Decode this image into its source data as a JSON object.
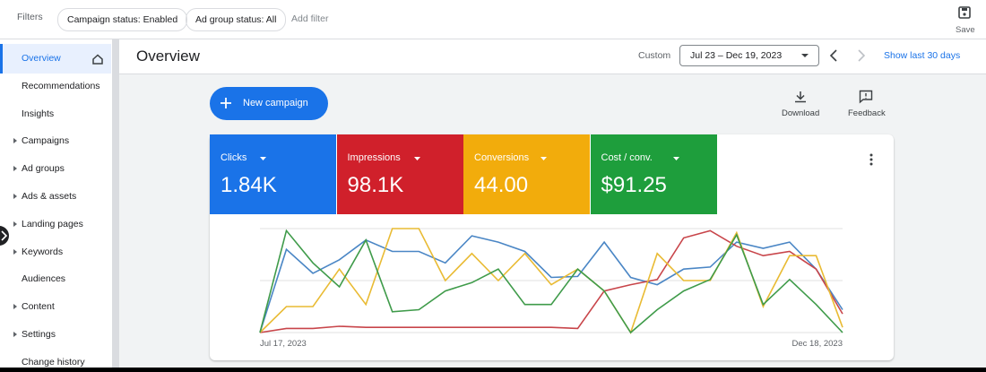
{
  "filters": {
    "label": "Filters",
    "chips": [
      "Campaign status: Enabled",
      "Ad group status: All"
    ],
    "add": "Add filter"
  },
  "save": "Save",
  "nav": [
    {
      "label": "Overview",
      "selected": true,
      "expandable": false
    },
    {
      "label": "Recommendations",
      "expandable": false
    },
    {
      "label": "Insights",
      "expandable": false
    },
    {
      "label": "Campaigns",
      "expandable": true
    },
    {
      "label": "Ad groups",
      "expandable": true
    },
    {
      "label": "Ads & assets",
      "expandable": true
    },
    {
      "label": "Landing pages",
      "expandable": true
    },
    {
      "label": "Keywords",
      "expandable": true
    },
    {
      "label": "Audiences",
      "expandable": false
    },
    {
      "label": "Content",
      "expandable": true
    },
    {
      "label": "Settings",
      "expandable": true
    },
    {
      "label": "Change history",
      "expandable": false
    }
  ],
  "header": {
    "title": "Overview",
    "range_label": "Custom",
    "range": "Jul 23 – Dec 19, 2023",
    "show_last": "Show last 30 days"
  },
  "actions": {
    "new_campaign": "New campaign",
    "download": "Download",
    "feedback": "Feedback"
  },
  "metrics": [
    {
      "name": "Clicks",
      "value": "1.84K",
      "color": "#1a73e8"
    },
    {
      "name": "Impressions",
      "value": "98.1K",
      "color": "#d0202b"
    },
    {
      "name": "Conversions",
      "value": "44.00",
      "color": "#f2ac0c"
    },
    {
      "name": "Cost / conv.",
      "value": "$91.25",
      "color": "#1e9e3c"
    }
  ],
  "chart_data": {
    "type": "line",
    "categories": [
      "Jul 17, 2023",
      null,
      null,
      null,
      null,
      null,
      null,
      null,
      null,
      null,
      null,
      null,
      null,
      null,
      null,
      null,
      null,
      null,
      null,
      null,
      null,
      null,
      "Dec 18, 2023"
    ],
    "series": [
      {
        "color": "#4a86c5",
        "values": [
          0,
          80,
          57,
          70,
          89,
          78,
          78,
          67,
          93,
          87,
          78,
          53,
          54,
          87,
          53,
          46,
          61,
          63,
          87,
          81,
          87,
          61,
          22
        ]
      },
      {
        "color": "#c8454a",
        "values": [
          0,
          4,
          4,
          6,
          5,
          5,
          5,
          5,
          5,
          5,
          5,
          5,
          4,
          40,
          46,
          51,
          91,
          98,
          83,
          74,
          78,
          61,
          18
        ]
      },
      {
        "color": "#e9bb34",
        "values": [
          0,
          25,
          25,
          61,
          27,
          100,
          100,
          50,
          76,
          50,
          76,
          46,
          61,
          40,
          0,
          76,
          50,
          50,
          96,
          25,
          74,
          74,
          5
        ]
      },
      {
        "color": "#3f9b4a",
        "values": [
          0,
          98,
          67,
          44,
          89,
          20,
          22,
          40,
          48,
          61,
          27,
          27,
          61,
          40,
          0,
          22,
          40,
          51,
          94,
          27,
          51,
          27,
          0
        ]
      }
    ],
    "ylim": [
      0,
      100
    ],
    "grid": true
  }
}
